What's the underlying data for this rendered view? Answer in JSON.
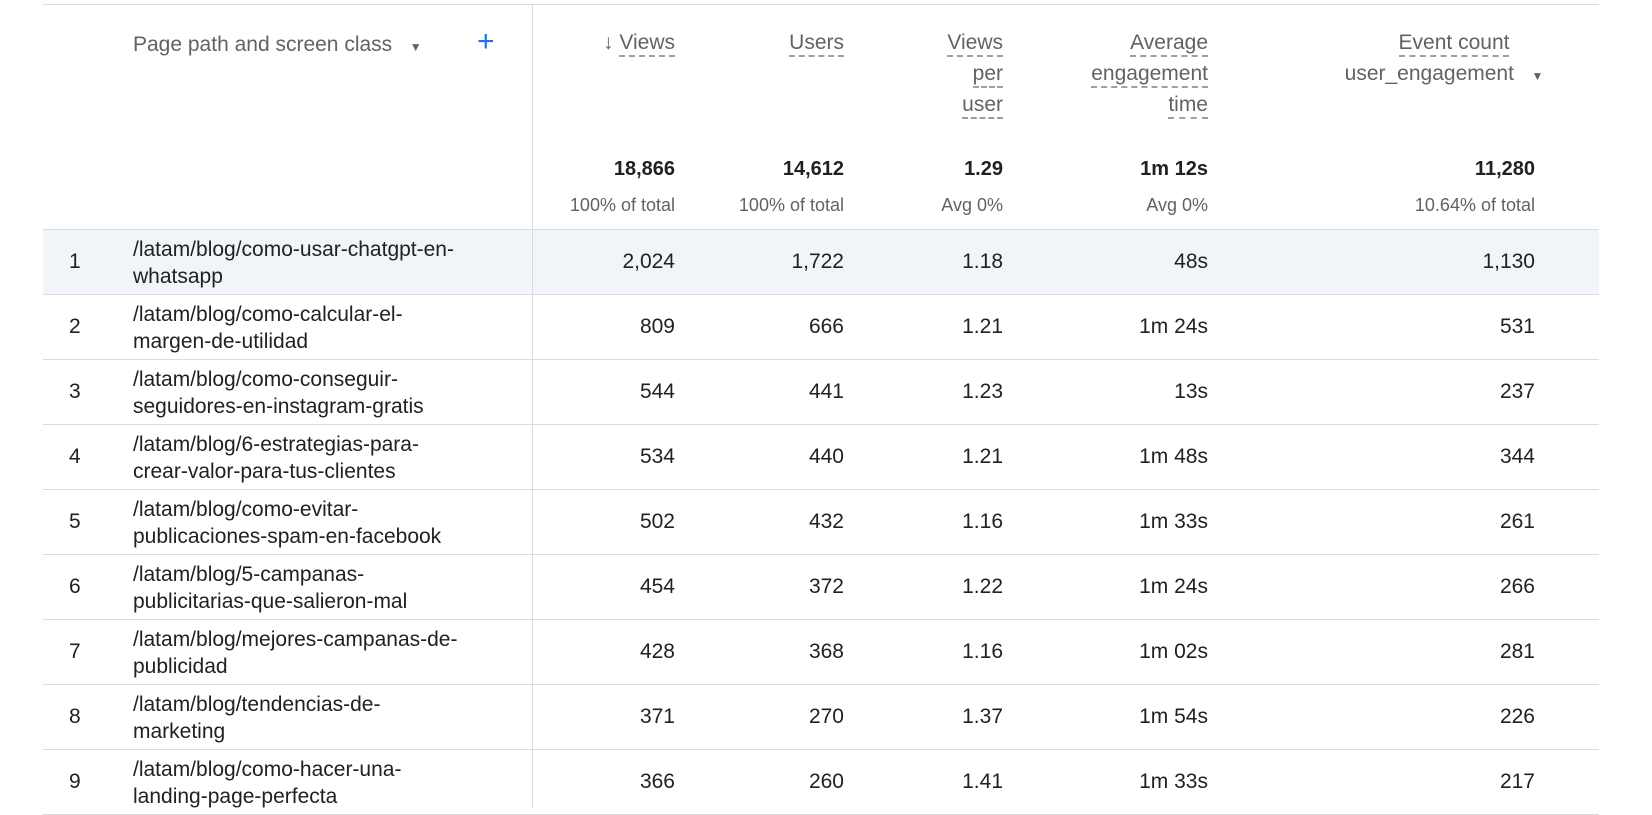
{
  "header": {
    "dimension_label": "Page path and screen class",
    "columns": [
      {
        "label_lines": [
          "Views"
        ],
        "sorted": true
      },
      {
        "label_lines": [
          "Users"
        ]
      },
      {
        "label_lines": [
          "Views",
          "per",
          "user"
        ]
      },
      {
        "label_lines": [
          "Average",
          "engagement",
          "time"
        ]
      },
      {
        "label_lines": [
          "Event count"
        ],
        "filter": "user_engagement"
      }
    ]
  },
  "totals": [
    {
      "value": "18,866",
      "sub": "100% of total"
    },
    {
      "value": "14,612",
      "sub": "100% of total"
    },
    {
      "value": "1.29",
      "sub": "Avg 0%"
    },
    {
      "value": "1m 12s",
      "sub": "Avg 0%"
    },
    {
      "value": "11,280",
      "sub": "10.64% of total"
    }
  ],
  "rows": [
    {
      "index": "1",
      "path": [
        "/latam/blog/como-usar-chatgpt-en-",
        "whatsapp"
      ],
      "values": [
        "2,024",
        "1,722",
        "1.18",
        "48s",
        "1,130"
      ]
    },
    {
      "index": "2",
      "path": [
        "/latam/blog/como-calcular-el-",
        "margen-de-utilidad"
      ],
      "values": [
        "809",
        "666",
        "1.21",
        "1m 24s",
        "531"
      ]
    },
    {
      "index": "3",
      "path": [
        "/latam/blog/como-conseguir-",
        "seguidores-en-instagram-gratis"
      ],
      "values": [
        "544",
        "441",
        "1.23",
        "13s",
        "237"
      ]
    },
    {
      "index": "4",
      "path": [
        "/latam/blog/6-estrategias-para-",
        "crear-valor-para-tus-clientes"
      ],
      "values": [
        "534",
        "440",
        "1.21",
        "1m 48s",
        "344"
      ]
    },
    {
      "index": "5",
      "path": [
        "/latam/blog/como-evitar-",
        "publicaciones-spam-en-facebook"
      ],
      "values": [
        "502",
        "432",
        "1.16",
        "1m 33s",
        "261"
      ]
    },
    {
      "index": "6",
      "path": [
        "/latam/blog/5-campanas-",
        "publicitarias-que-salieron-mal"
      ],
      "values": [
        "454",
        "372",
        "1.22",
        "1m 24s",
        "266"
      ]
    },
    {
      "index": "7",
      "path": [
        "/latam/blog/mejores-campanas-de-",
        "publicidad"
      ],
      "values": [
        "428",
        "368",
        "1.16",
        "1m 02s",
        "281"
      ]
    },
    {
      "index": "8",
      "path": [
        "/latam/blog/tendencias-de-",
        "marketing"
      ],
      "values": [
        "371",
        "270",
        "1.37",
        "1m 54s",
        "226"
      ]
    },
    {
      "index": "9",
      "path": [
        "/latam/blog/como-hacer-una-",
        "landing-page-perfecta"
      ],
      "values": [
        "366",
        "260",
        "1.41",
        "1m 33s",
        "217"
      ]
    }
  ]
}
